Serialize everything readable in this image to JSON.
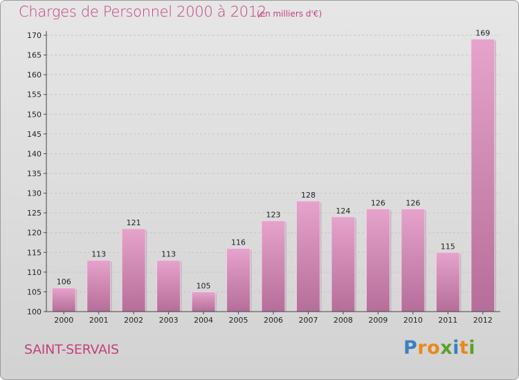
{
  "title": "Charges de Personnel 2000 à 2012",
  "subtitle": "(en milliers d'€)",
  "location": "SAINT-SERVAIS",
  "logo": {
    "letters": [
      "P",
      "r",
      "o",
      "x",
      "i",
      "t",
      "i"
    ],
    "colors": [
      "#3a7fc4",
      "#e68a1a",
      "#e68a1a",
      "#5aa02c",
      "#3a7fc4",
      "#e68a1a",
      "#5aa02c"
    ]
  },
  "colors": {
    "accent": "#c2427e",
    "bar_top": "#e6a3cb",
    "bar_bottom": "#b56e99"
  },
  "chart_data": {
    "type": "bar",
    "categories": [
      "2000",
      "2001",
      "2002",
      "2003",
      "2004",
      "2005",
      "2006",
      "2007",
      "2008",
      "2009",
      "2010",
      "2011",
      "2012"
    ],
    "values": [
      106,
      113,
      121,
      113,
      105,
      116,
      123,
      128,
      124,
      126,
      126,
      115,
      169
    ],
    "ylim": [
      100,
      170
    ],
    "yticks": [
      100,
      105,
      110,
      115,
      120,
      125,
      130,
      135,
      140,
      145,
      150,
      155,
      160,
      165,
      170
    ],
    "grid": true
  }
}
